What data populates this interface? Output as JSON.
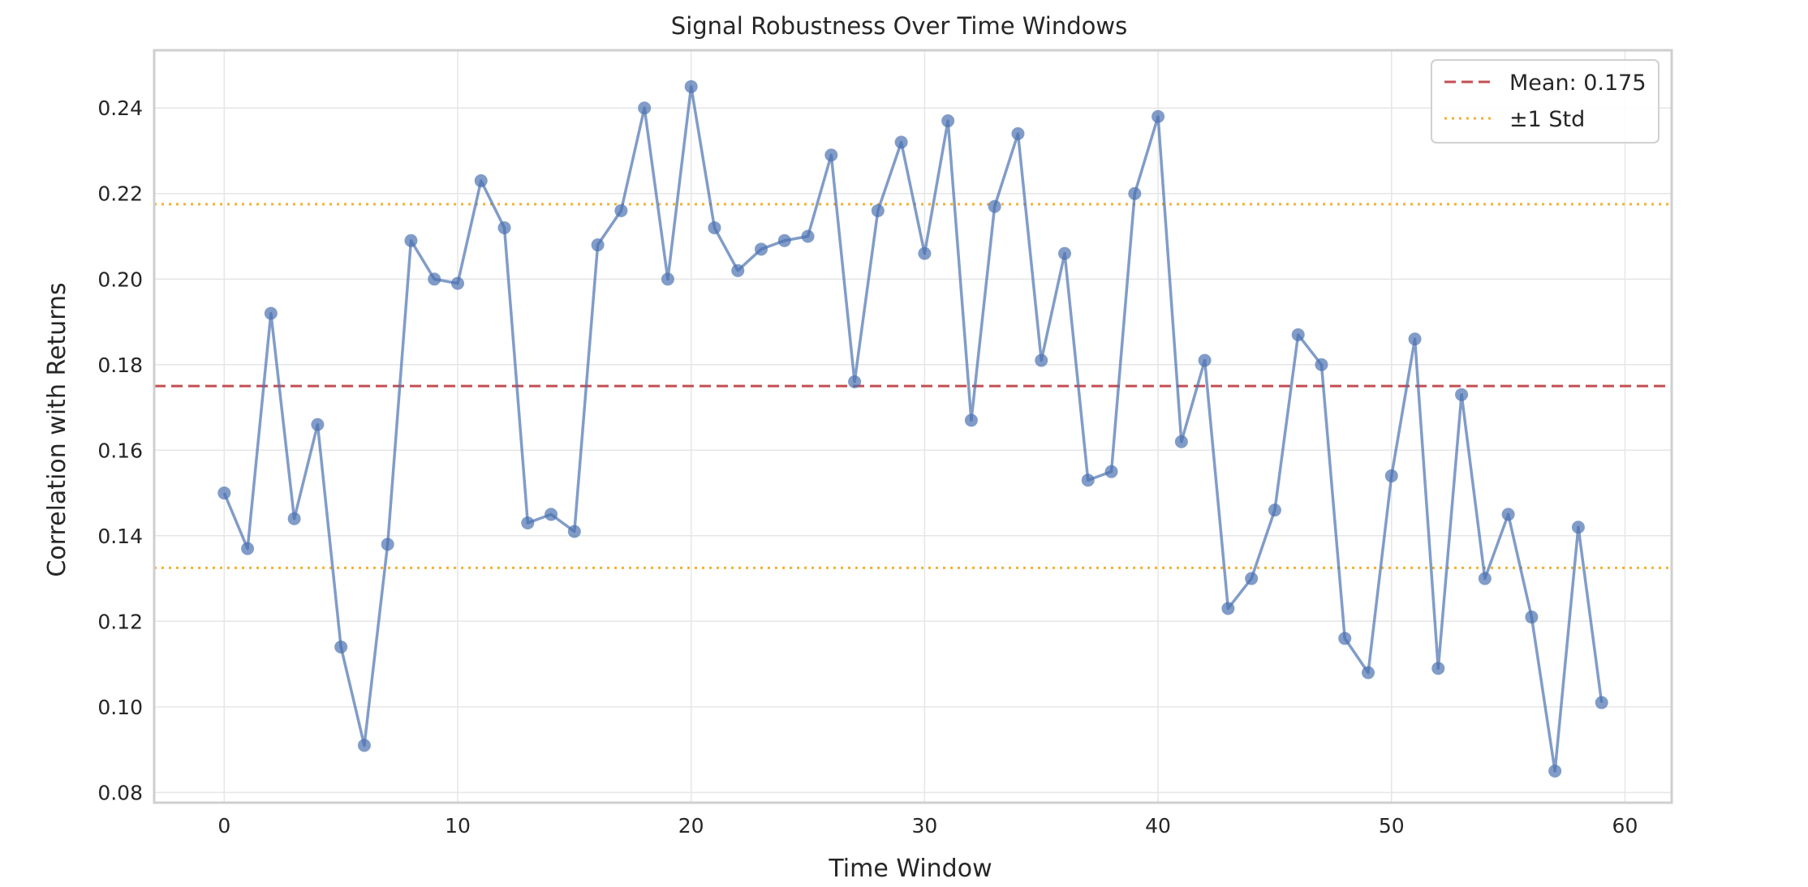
{
  "chart_data": {
    "type": "line",
    "title": "Signal Robustness Over Time Windows",
    "xlabel": "Time Window",
    "ylabel": "Correlation with Returns",
    "xlim": [
      -3,
      62
    ],
    "ylim": [
      0.0776,
      0.2535
    ],
    "xticks": [
      0,
      10,
      20,
      30,
      40,
      50,
      60
    ],
    "xtick_labels": [
      "0",
      "10",
      "20",
      "30",
      "40",
      "50",
      "60"
    ],
    "yticks": [
      0.08,
      0.1,
      0.12,
      0.14,
      0.16,
      0.18,
      0.2,
      0.22,
      0.24
    ],
    "ytick_labels": [
      "0.08",
      "0.10",
      "0.12",
      "0.14",
      "0.16",
      "0.18",
      "0.20",
      "0.22",
      "0.24"
    ],
    "grid": true,
    "legend_position": "top-right",
    "series": [
      {
        "color": "#4c72b0",
        "x": [
          0,
          1,
          2,
          3,
          4,
          5,
          6,
          7,
          8,
          9,
          10,
          11,
          12,
          13,
          14,
          15,
          16,
          17,
          18,
          19,
          20,
          21,
          22,
          23,
          24,
          25,
          26,
          27,
          28,
          29,
          30,
          31,
          32,
          33,
          34,
          35,
          36,
          37,
          38,
          39,
          40,
          41,
          42,
          43,
          44,
          45,
          46,
          47,
          48,
          49,
          50,
          51,
          52,
          53,
          54,
          55,
          56,
          57,
          58,
          59
        ],
        "values": [
          0.15,
          0.137,
          0.192,
          0.144,
          0.166,
          0.114,
          0.091,
          0.138,
          0.209,
          0.2,
          0.199,
          0.223,
          0.212,
          0.143,
          0.145,
          0.141,
          0.208,
          0.216,
          0.24,
          0.2,
          0.245,
          0.212,
          0.202,
          0.207,
          0.209,
          0.21,
          0.229,
          0.176,
          0.216,
          0.232,
          0.206,
          0.237,
          0.167,
          0.217,
          0.234,
          0.181,
          0.206,
          0.153,
          0.155,
          0.22,
          0.238,
          0.162,
          0.181,
          0.123,
          0.13,
          0.146,
          0.187,
          0.18,
          0.116,
          0.108,
          0.154,
          0.186,
          0.109,
          0.173,
          0.13,
          0.145,
          0.121,
          0.085,
          0.142,
          0.101
        ]
      }
    ],
    "reference_lines": [
      {
        "name": "Mean: 0.175",
        "value": 0.175,
        "style": "dashed",
        "color": "#c44e52"
      },
      {
        "name": "±1 Std",
        "values": [
          0.1325,
          0.2175
        ],
        "style": "dotted",
        "color": "#f2b134"
      }
    ]
  }
}
